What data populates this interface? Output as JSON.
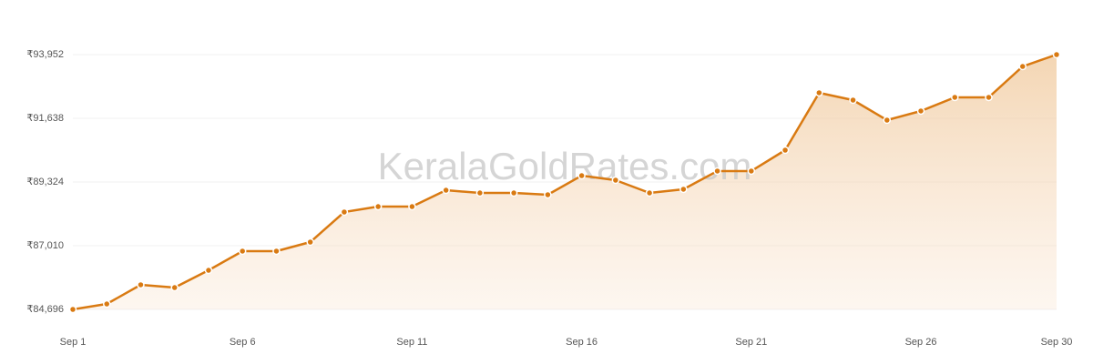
{
  "chart_data": {
    "type": "line",
    "watermark": "KeralaGoldRates.com",
    "categories": [
      "Sep 1",
      null,
      null,
      null,
      null,
      "Sep 6",
      null,
      null,
      null,
      null,
      "Sep 11",
      null,
      null,
      null,
      null,
      "Sep 16",
      null,
      null,
      null,
      null,
      "Sep 21",
      null,
      null,
      null,
      null,
      "Sep 26",
      null,
      null,
      null,
      "Sep 30"
    ],
    "values": [
      84696,
      84894,
      85589,
      85489,
      86117,
      86812,
      86812,
      87142,
      88233,
      88431,
      88431,
      89026,
      88927,
      88927,
      88861,
      89555,
      89390,
      88927,
      89060,
      89721,
      89721,
      90481,
      92564,
      92299,
      91572,
      91903,
      92399,
      92399,
      93522,
      93952
    ],
    "color": "#d97a12",
    "ylim": [
      84696,
      93952
    ],
    "yticks": [
      {
        "value": 84696,
        "label": "₹84,696"
      },
      {
        "value": 87010,
        "label": "₹87,010"
      },
      {
        "value": 89324,
        "label": "₹89,324"
      },
      {
        "value": 91638,
        "label": "₹91,638"
      },
      {
        "value": 93952,
        "label": "₹93,952"
      }
    ],
    "grid": true
  }
}
